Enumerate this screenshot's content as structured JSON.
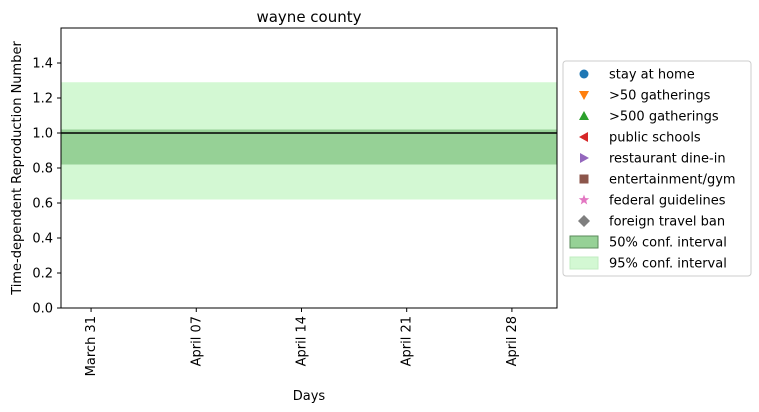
{
  "chart_data": {
    "type": "line",
    "title": "wayne county",
    "xlabel": "Days",
    "ylabel": "Time-dependent Reproduction Number",
    "x_ticks": [
      "March 31",
      "April 07",
      "April 14",
      "April 21",
      "April 28"
    ],
    "x_tick_days": [
      0,
      7,
      14,
      21,
      28
    ],
    "xlim": [
      -2,
      31
    ],
    "ylim": [
      0,
      1.6
    ],
    "y_ticks": [
      "0.0",
      "0.2",
      "0.4",
      "0.6",
      "0.8",
      "1.0",
      "1.2",
      "1.4"
    ],
    "y_tick_values": [
      0,
      0.2,
      0.4,
      0.6,
      0.8,
      1.0,
      1.2,
      1.4
    ],
    "reference_line": 1.0,
    "median": [
      1.02,
      1.02
    ],
    "interval_50": [
      0.82,
      1.02
    ],
    "interval_95": [
      0.62,
      1.29
    ],
    "grid": false,
    "legend_position": "right",
    "legend": [
      {
        "label": "stay at home",
        "marker": "circle",
        "color": "#1f77b4"
      },
      {
        "label": ">50 gatherings",
        "marker": "triangle-down",
        "color": "#ff7f0e"
      },
      {
        "label": ">500 gatherings",
        "marker": "triangle-up",
        "color": "#2ca02c"
      },
      {
        "label": "public schools",
        "marker": "triangle-left",
        "color": "#d62728"
      },
      {
        "label": "restaurant dine-in",
        "marker": "triangle-right",
        "color": "#9467bd"
      },
      {
        "label": "entertainment/gym",
        "marker": "square",
        "color": "#8c564b"
      },
      {
        "label": "federal guidelines",
        "marker": "star",
        "color": "#e377c2"
      },
      {
        "label": "foreign travel ban",
        "marker": "diamond",
        "color": "#7f7f7f"
      },
      {
        "label": "50% conf. interval",
        "marker": "patch",
        "color": "#96d196"
      },
      {
        "label": "95% conf. interval",
        "marker": "patch",
        "color": "#d3f8d3"
      }
    ]
  }
}
